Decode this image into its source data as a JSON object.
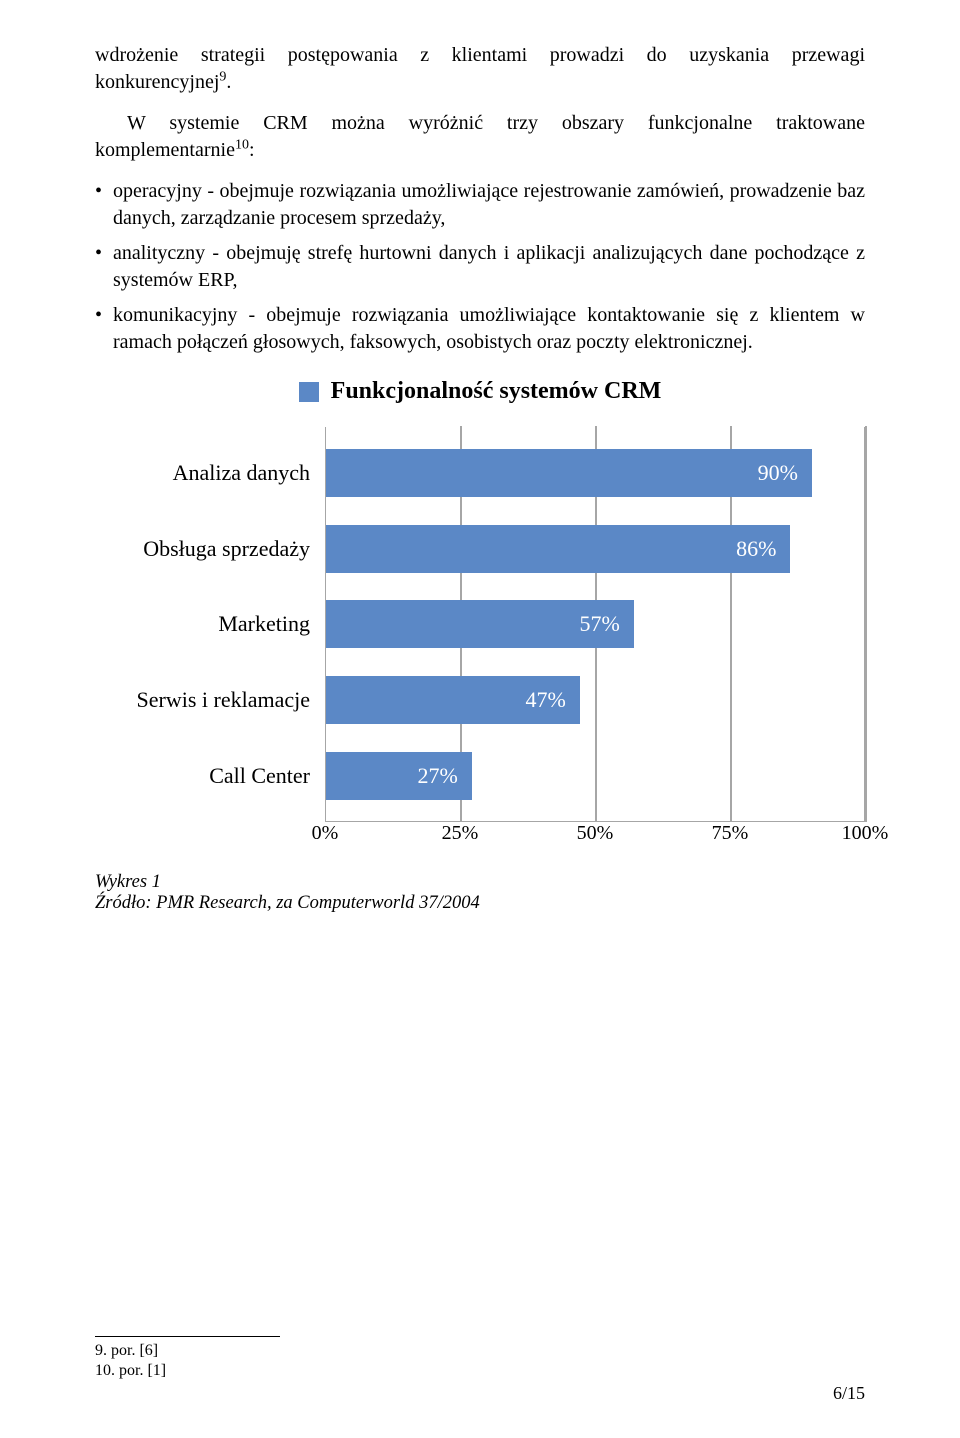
{
  "paragraphs": {
    "p1_a": "wdrożenie strategii postępowania z klientami prowadzi do uzyskania przewagi konkurencyjnej",
    "p1_sup": "9",
    "p1_b": ".",
    "p2_a": "W systemie CRM można wyróżnić trzy obszary funkcjonalne traktowane komplementarnie",
    "p2_sup": "10",
    "p2_b": ":"
  },
  "bullets": [
    "operacyjny - obejmuje rozwiązania umożliwiające rejestrowanie zamówień, prowadzenie baz danych, zarządzanie procesem sprzedaży,",
    "analityczny - obejmuję strefę hurtowni danych i aplikacji analizujących dane pochodzące z systemów ERP,",
    "komunikacyjny - obejmuje rozwiązania umożliwiające kontaktowanie się z klientem w ramach połączeń głosowych, faksowych, osobistych oraz poczty elektronicznej."
  ],
  "chart": {
    "type": "bar-horizontal",
    "legend_label": "Funkcjonalność systemów CRM",
    "bar_color": "#5b88c6",
    "border_color": "#a6a6a6",
    "value_text_color": "#ffffff",
    "background_color": "#ffffff",
    "xmin": 0,
    "xmax": 100,
    "xtick_step": 25,
    "xtick_labels": [
      "0%",
      "25%",
      "50%",
      "75%",
      "100%"
    ],
    "categories": [
      {
        "label": "Analiza danych",
        "value": 90,
        "value_label": "90%"
      },
      {
        "label": "Obsługa sprzedaży",
        "value": 86,
        "value_label": "86%"
      },
      {
        "label": "Marketing",
        "value": 57,
        "value_label": "57%"
      },
      {
        "label": "Serwis i reklamacje",
        "value": 47,
        "value_label": "47%"
      },
      {
        "label": "Call Center",
        "value": 27,
        "value_label": "27%"
      }
    ]
  },
  "caption": {
    "line1": "Wykres 1",
    "line2": "Źródło: PMR Research, za Computerworld 37/2004"
  },
  "footnotes": {
    "f1": "9. por. [6]",
    "f2": "10. por. [1]"
  },
  "page_number": "6/15"
}
